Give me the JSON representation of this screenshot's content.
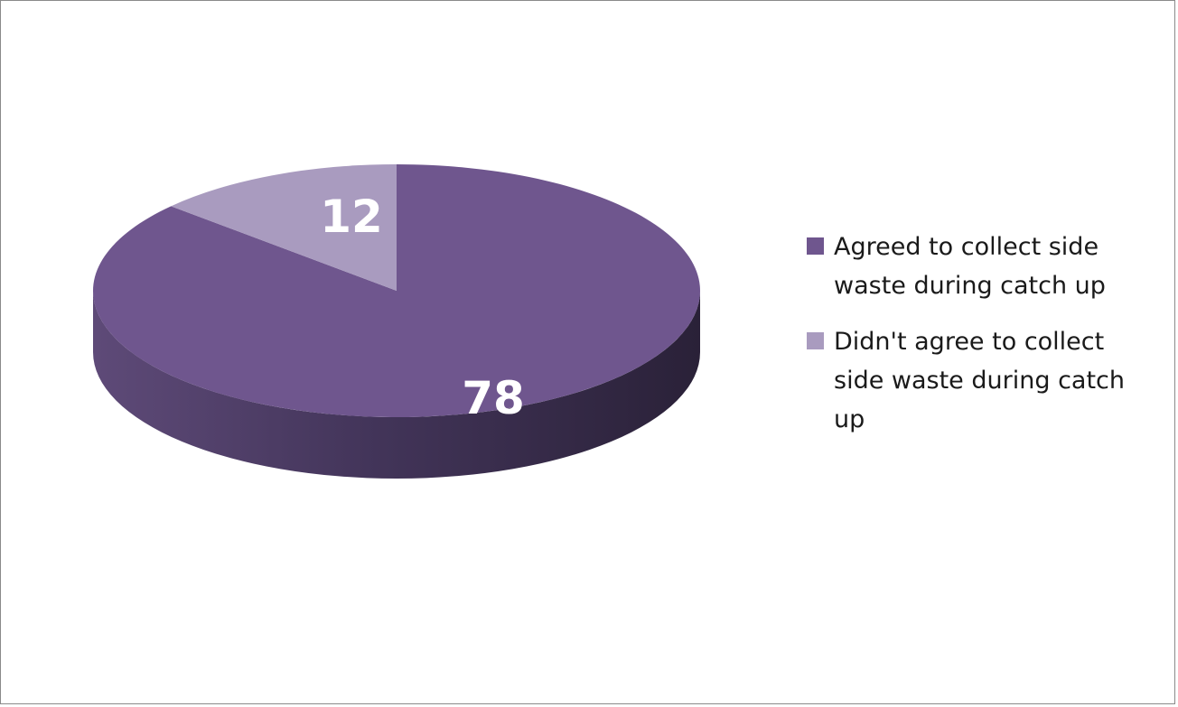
{
  "chart_data": {
    "type": "pie",
    "style": "3d",
    "title": "",
    "series": [
      {
        "values": [
          78,
          12
        ],
        "colors": [
          "#6f568e",
          "#a99bbf"
        ],
        "side_colors": [
          "#3f3052",
          "#5d4f73"
        ]
      }
    ],
    "categories": [
      "Agreed to collect side waste during catch up",
      "Didn't agree to collect side waste during catch up"
    ],
    "data_labels": [
      "78",
      "12"
    ],
    "legend": {
      "position": "right",
      "items": [
        {
          "label": "Agreed to collect side waste during catch up",
          "color": "#6f568e"
        },
        {
          "label": "Didn't agree to collect side waste during catch up",
          "color": "#a99bbf"
        }
      ]
    }
  }
}
